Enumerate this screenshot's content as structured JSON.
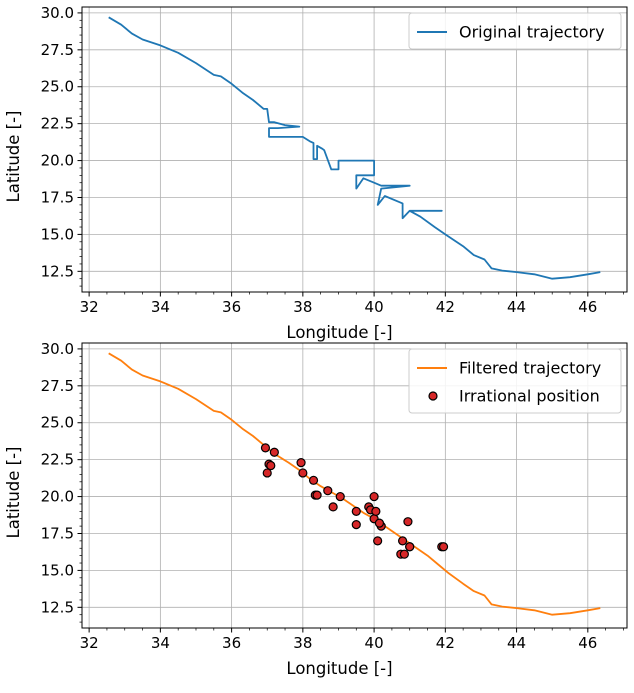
{
  "chart_data": [
    {
      "type": "line",
      "xlabel": "Longitude [-]",
      "ylabel": "Latitude [-]",
      "xlim": [
        31.8,
        47.1
      ],
      "ylim": [
        11.1,
        30.4
      ],
      "xticks": [
        32,
        34,
        36,
        38,
        40,
        42,
        44,
        46
      ],
      "yticks": [
        12.5,
        15.0,
        17.5,
        20.0,
        22.5,
        25.0,
        27.5,
        30.0
      ],
      "xtick_labels": [
        "32",
        "34",
        "36",
        "38",
        "40",
        "42",
        "44",
        "46"
      ],
      "ytick_labels": [
        "12.5",
        "15.0",
        "17.5",
        "20.0",
        "22.5",
        "25.0",
        "27.5",
        "30.0"
      ],
      "grid": true,
      "legend_position": "top-right",
      "series": [
        {
          "name": "Original trajectory",
          "color": "#1f77b4",
          "x": [
            32.55,
            32.9,
            33.2,
            33.5,
            34.0,
            34.5,
            35.0,
            35.5,
            35.7,
            36.0,
            36.3,
            36.6,
            36.9,
            37.0,
            37.05,
            37.2,
            37.5,
            37.9,
            37.3,
            37.05,
            37.05,
            37.5,
            38.0,
            38.2,
            38.3,
            38.3,
            38.4,
            38.4,
            38.55,
            38.6,
            38.8,
            39.0,
            39.0,
            40.0,
            40.0,
            39.5,
            39.5,
            39.7,
            40.0,
            40.2,
            41.0,
            40.2,
            40.1,
            40.3,
            40.7,
            40.8,
            40.8,
            41.0,
            41.9,
            41.0,
            41.3,
            41.7,
            42.0,
            42.5,
            42.8,
            43.1,
            43.3,
            43.6,
            44.0,
            44.5,
            45.0,
            45.5,
            46.0,
            46.35
          ],
          "y": [
            29.7,
            29.2,
            28.6,
            28.2,
            27.8,
            27.3,
            26.6,
            25.8,
            25.7,
            25.2,
            24.6,
            24.1,
            23.5,
            23.5,
            22.6,
            22.6,
            22.4,
            22.3,
            22.2,
            22.2,
            21.6,
            21.6,
            21.6,
            21.3,
            21.2,
            20.1,
            20.1,
            21.0,
            20.8,
            20.7,
            19.4,
            19.4,
            20.0,
            20.0,
            19.0,
            19.0,
            18.1,
            18.8,
            18.5,
            18.3,
            18.3,
            18.1,
            17.0,
            17.6,
            17.2,
            17.1,
            16.1,
            16.6,
            16.6,
            16.6,
            16.2,
            15.5,
            15.0,
            14.2,
            13.6,
            13.3,
            12.7,
            12.55,
            12.45,
            12.3,
            12.0,
            12.1,
            12.3,
            12.45
          ]
        }
      ]
    },
    {
      "type": "line",
      "xlabel": "Longitude [-]",
      "ylabel": "Latitude [-]",
      "xlim": [
        31.8,
        47.1
      ],
      "ylim": [
        11.1,
        30.4
      ],
      "xticks": [
        32,
        34,
        36,
        38,
        40,
        42,
        44,
        46
      ],
      "yticks": [
        12.5,
        15.0,
        17.5,
        20.0,
        22.5,
        25.0,
        27.5,
        30.0
      ],
      "xtick_labels": [
        "32",
        "34",
        "36",
        "38",
        "40",
        "42",
        "44",
        "46"
      ],
      "ytick_labels": [
        "12.5",
        "15.0",
        "17.5",
        "20.0",
        "22.5",
        "25.0",
        "27.5",
        "30.0"
      ],
      "grid": true,
      "legend_position": "top-right",
      "series": [
        {
          "name": "Filtered trajectory",
          "color": "#ff7f0e",
          "x": [
            32.55,
            32.9,
            33.2,
            33.5,
            34.0,
            34.5,
            35.0,
            35.5,
            35.7,
            36.0,
            36.3,
            36.6,
            36.9,
            37.2,
            37.6,
            37.9,
            38.2,
            38.5,
            38.8,
            39.1,
            39.4,
            39.7,
            40.0,
            40.3,
            40.6,
            40.9,
            41.2,
            41.5,
            41.8,
            42.1,
            42.5,
            42.8,
            43.1,
            43.3,
            43.6,
            44.0,
            44.5,
            45.0,
            45.5,
            46.0,
            46.35
          ],
          "y": [
            29.7,
            29.2,
            28.6,
            28.2,
            27.8,
            27.3,
            26.6,
            25.8,
            25.7,
            25.2,
            24.6,
            24.1,
            23.5,
            22.9,
            22.3,
            21.8,
            21.2,
            20.7,
            20.3,
            19.9,
            19.4,
            18.9,
            18.5,
            18.0,
            17.5,
            17.0,
            16.5,
            16.0,
            15.4,
            14.8,
            14.1,
            13.6,
            13.3,
            12.7,
            12.55,
            12.45,
            12.3,
            12.0,
            12.1,
            12.3,
            12.45
          ]
        },
        {
          "name": "Irrational position",
          "type": "scatter",
          "color": "#d62728",
          "edgecolor": "#000000",
          "x": [
            36.95,
            37.0,
            37.05,
            37.1,
            37.2,
            37.95,
            38.0,
            38.3,
            38.35,
            38.4,
            38.7,
            38.85,
            39.05,
            39.5,
            39.5,
            39.85,
            39.9,
            40.0,
            40.0,
            40.05,
            40.1,
            40.2,
            40.15,
            40.95,
            41.0,
            40.75,
            40.8,
            40.85,
            41.0,
            41.9,
            41.95
          ],
          "y": [
            23.3,
            21.6,
            22.2,
            22.1,
            23.0,
            22.3,
            21.6,
            21.1,
            20.1,
            20.1,
            20.4,
            19.3,
            20.0,
            19.0,
            18.1,
            19.3,
            19.1,
            20.0,
            18.5,
            19.0,
            17.0,
            18.0,
            18.2,
            18.3,
            16.6,
            16.1,
            17.0,
            16.1,
            16.6,
            16.6,
            16.6
          ]
        }
      ]
    }
  ]
}
